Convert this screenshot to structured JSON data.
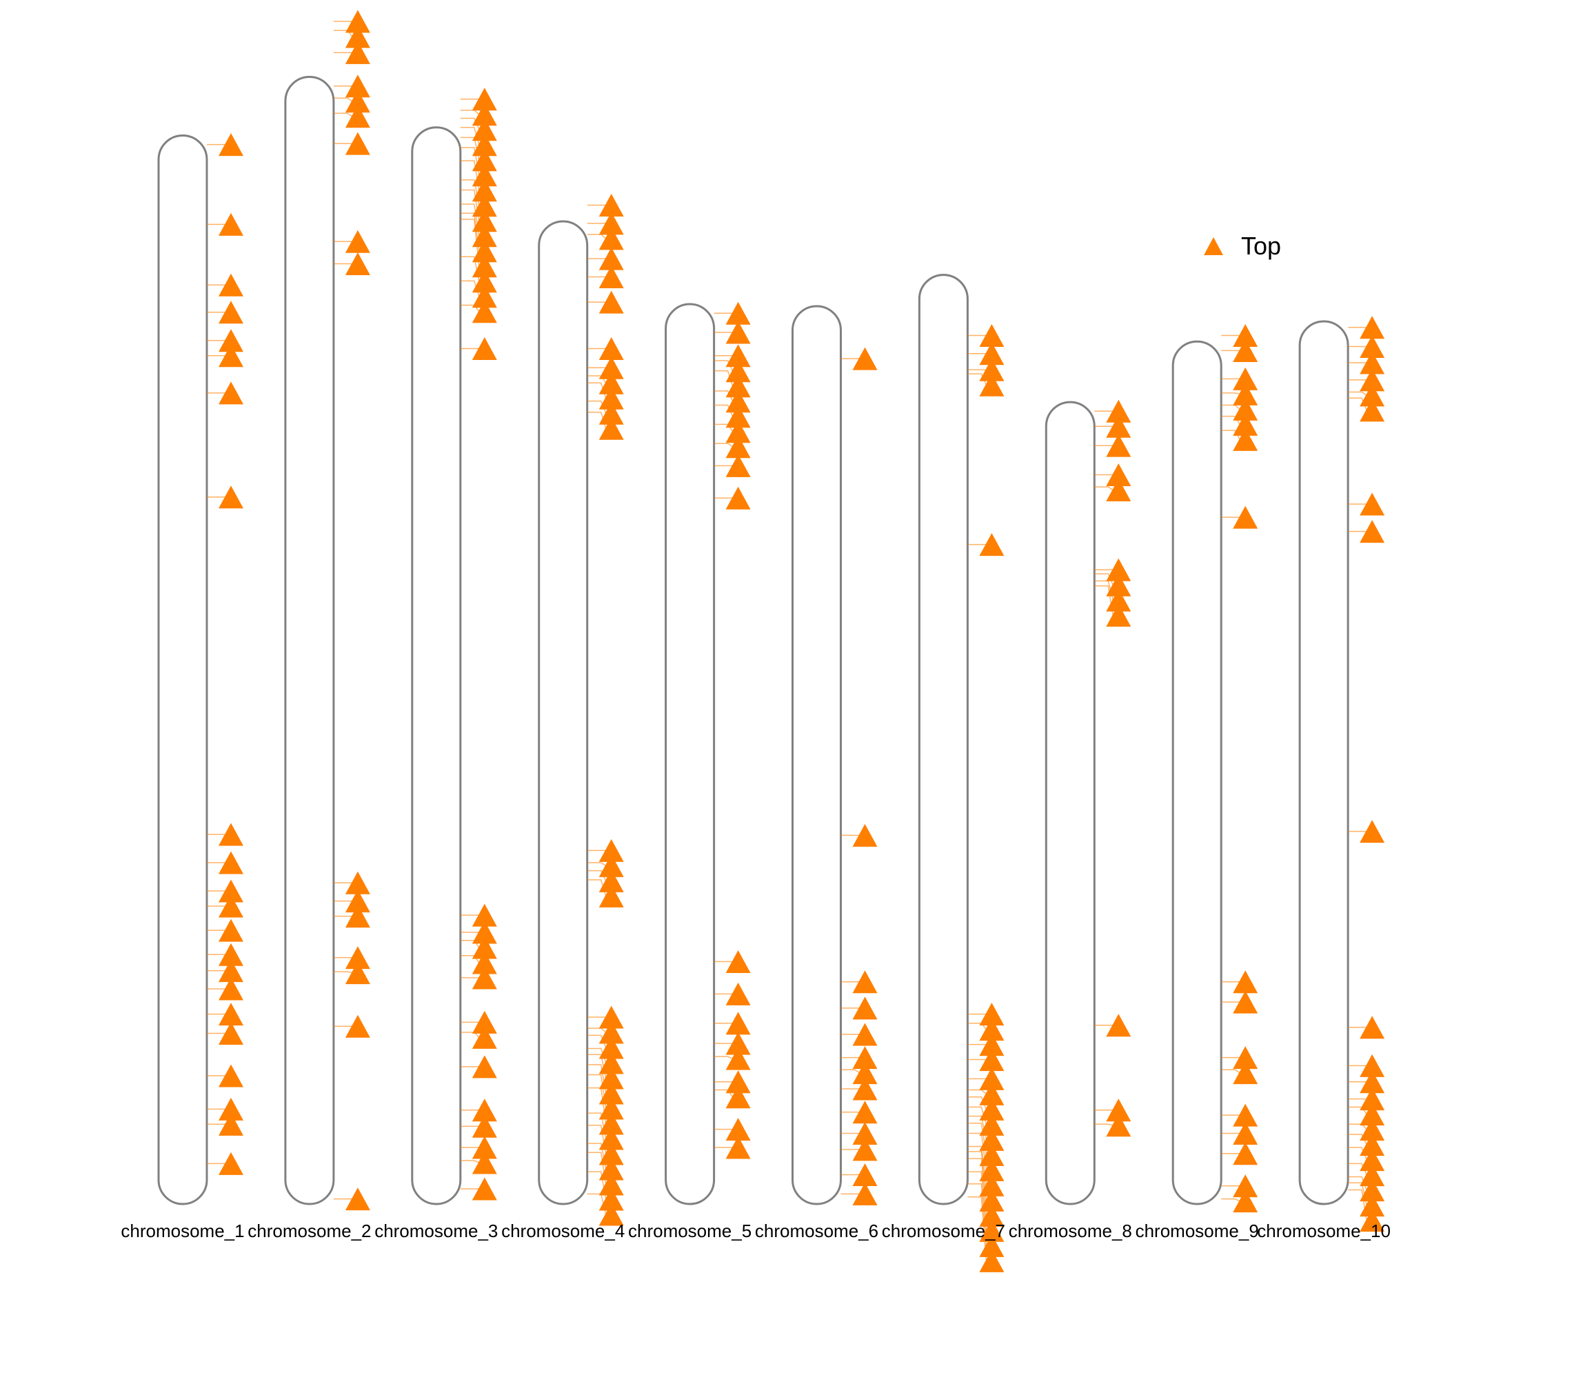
{
  "legend": {
    "items": [
      {
        "label": "Top",
        "color": "#ff7f00",
        "shape": "triangle-up"
      }
    ]
  },
  "colors": {
    "marker": "#ff7f00",
    "chromosome_outline": "#808080",
    "background": "#ffffff"
  },
  "chart_data": {
    "type": "chromosome-ideogram",
    "note_units": "positions are in chromosome coordinate units, 0 = bottom of chromosome, chromosome length in same units",
    "chromosomes": [
      {
        "name": "chromosome_1",
        "length": 1058,
        "markers": [
          1049,
          970,
          910,
          883,
          855,
          840,
          803,
          700,
          366,
          338,
          310,
          295,
          271,
          247,
          231,
          213,
          188,
          169,
          127,
          94,
          79,
          40
        ]
      },
      {
        "name": "chromosome_2",
        "length": 1116,
        "markers": [
          1171,
          1162,
          1140,
          1107,
          1095,
          1080,
          1050,
          953,
          931,
          318,
          300,
          285,
          244,
          230,
          176,
          5
        ]
      },
      {
        "name": "chromosome_3",
        "length": 1066,
        "markers": [
          1094,
          1083,
          1075,
          1066,
          1056,
          1046,
          1033,
          1014,
          1004,
          990,
          981,
          975,
          938,
          914,
          890,
          847,
          286,
          269,
          261,
          246,
          224,
          180,
          170,
          136,
          93,
          77,
          56,
          43,
          15
        ]
      },
      {
        "name": "chromosome_4",
        "length": 973,
        "markers": [
          989,
          971,
          960,
          936,
          918,
          893,
          847,
          828,
          820,
          813,
          795,
          784,
          350,
          338,
          330,
          321,
          185,
          174,
          167,
          154,
          148,
          138,
          128,
          115,
          90,
          78,
          60,
          51,
          32,
          10
        ]
      },
      {
        "name": "chromosome_5",
        "length": 891,
        "markers": [
          882,
          863,
          840,
          835,
          825,
          805,
          791,
          772,
          753,
          731,
          699,
          240,
          208,
          179,
          159,
          146,
          121,
          113,
          74,
          56
        ]
      },
      {
        "name": "chromosome_6",
        "length": 889,
        "markers": [
          837,
          365,
          220,
          194,
          168,
          145,
          133,
          114,
          91,
          70,
          54,
          29,
          10
        ]
      },
      {
        "name": "chromosome_7",
        "length": 920,
        "markers": [
          860,
          842,
          826,
          822,
          653,
          188,
          179,
          158,
          143,
          124,
          113,
          106,
          96,
          87,
          80,
          70,
          57,
          52,
          45,
          32,
          20,
          7
        ]
      },
      {
        "name": "chromosome_8",
        "length": 794,
        "markers": [
          785,
          770,
          751,
          722,
          710,
          628,
          617,
          624,
          612,
          177,
          93,
          79
        ]
      },
      {
        "name": "chromosome_9",
        "length": 854,
        "markers": [
          860,
          845,
          817,
          803,
          791,
          780,
          766,
          680,
          220,
          200,
          145,
          133,
          88,
          70,
          50,
          18,
          5
        ]
      },
      {
        "name": "chromosome_10",
        "length": 874,
        "markers": [
          868,
          849,
          833,
          816,
          804,
          798,
          693,
          666,
          369,
          175,
          137,
          121,
          104,
          96,
          79,
          69,
          56,
          40,
          27,
          21,
          14
        ]
      }
    ]
  }
}
